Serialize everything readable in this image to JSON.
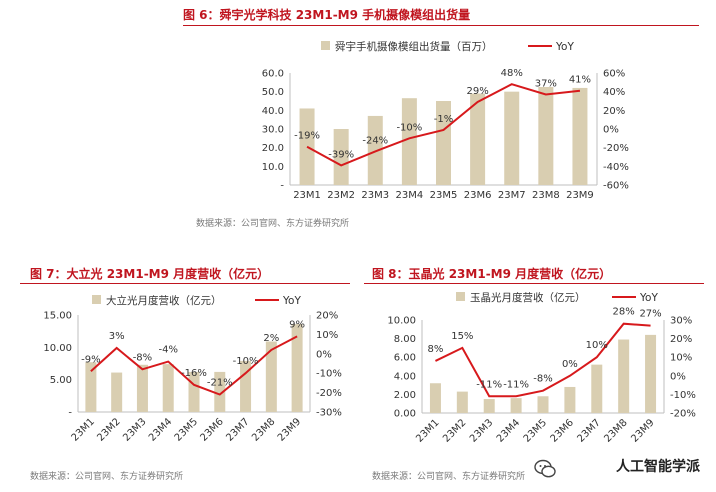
{
  "chart_data": [
    {
      "type": "bar+line",
      "title": "图 6：舜宇光学科技 23M1-M9 手机摄像模组出货量",
      "legend": [
        "舜宇手机摄像模组出货量（百万）",
        "YoY"
      ],
      "categories": [
        "23M1",
        "23M2",
        "23M3",
        "23M4",
        "23M5",
        "23M6",
        "23M7",
        "23M8",
        "23M9"
      ],
      "series": [
        {
          "name": "舜宇手机摄像模组出货量（百万）",
          "kind": "bar",
          "values": [
            41,
            30,
            37,
            46.5,
            45,
            49,
            50,
            52.5,
            52
          ]
        },
        {
          "name": "YoY",
          "kind": "line",
          "values": [
            -19,
            -39,
            -24,
            -10,
            -1,
            29,
            48,
            37,
            41
          ],
          "labels": [
            "-19%",
            "-39%",
            "-24%",
            "-10%",
            "-1%",
            "29%",
            "48%",
            "37%",
            "41%"
          ]
        }
      ],
      "left_ticks": [
        "60.0",
        "50.0",
        "40.0",
        "30.0",
        "20.0",
        "10.0",
        "-"
      ],
      "right_ticks": [
        "60%",
        "40%",
        "20%",
        "0%",
        "-20%",
        "-40%",
        "-60%"
      ],
      "ylim_left": [
        0,
        60
      ],
      "ylim_right": [
        -60,
        60
      ],
      "source": "数据来源：公司官网、东方证券研究所"
    },
    {
      "type": "bar+line",
      "title": "图 7：大立光 23M1-M9 月度营收（亿元）",
      "legend": [
        "大立光月度营收（亿元）",
        "YoY"
      ],
      "categories": [
        "23M1",
        "23M2",
        "23M3",
        "23M4",
        "23M5",
        "23M6",
        "23M7",
        "23M8",
        "23M9"
      ],
      "series": [
        {
          "name": "大立光月度营收（亿元）",
          "kind": "bar",
          "values": [
            7.7,
            6.1,
            7.3,
            7.4,
            6.2,
            6.2,
            7.9,
            10.9,
            13.6
          ]
        },
        {
          "name": "YoY",
          "kind": "line",
          "values": [
            -9,
            3,
            -8,
            -4,
            -16,
            -21,
            -10,
            2,
            9
          ],
          "labels": [
            "-9%",
            "3%",
            "-8%",
            "-4%",
            "-16%",
            "-21%",
            "-10%",
            "2%",
            "9%"
          ]
        }
      ],
      "left_ticks": [
        "15.00",
        "10.00",
        "5.00",
        "-"
      ],
      "right_ticks": [
        "20%",
        "10%",
        "0%",
        "-10%",
        "-20%",
        "-30%"
      ],
      "ylim_left": [
        0,
        15
      ],
      "ylim_right": [
        -30,
        20
      ],
      "source": "数据来源：公司官网、东方证券研究所"
    },
    {
      "type": "bar+line",
      "title": "图 8：玉晶光 23M1-M9 月度营收（亿元）",
      "legend": [
        "玉晶光月度营收（亿元）",
        "YoY"
      ],
      "categories": [
        "23M1",
        "23M2",
        "23M3",
        "23M4",
        "23M5",
        "23M6",
        "23M7",
        "23M8",
        "23M9"
      ],
      "series": [
        {
          "name": "玉晶光月度营收（亿元）",
          "kind": "bar",
          "values": [
            3.2,
            2.3,
            1.5,
            1.6,
            1.8,
            2.8,
            5.2,
            7.9,
            8.4
          ]
        },
        {
          "name": "YoY",
          "kind": "line",
          "values": [
            8,
            15,
            -11,
            -11,
            -8,
            0,
            10,
            28,
            27
          ],
          "labels": [
            "8%",
            "15%",
            "-11%",
            "-11%",
            "-8%",
            "0%",
            "10%",
            "28%",
            "27%"
          ]
        }
      ],
      "left_ticks": [
        "10.00",
        "8.00",
        "6.00",
        "4.00",
        "2.00",
        "0.00"
      ],
      "right_ticks": [
        "30%",
        "20%",
        "10%",
        "0%",
        "-10%",
        "-20%"
      ],
      "ylim_left": [
        0,
        10
      ],
      "ylim_right": [
        -20,
        30
      ],
      "source": "数据来源：公司官网、东方证券研究所"
    }
  ],
  "watermark": "人工智能学派",
  "colors": {
    "bar": "#d9ceb1",
    "line": "#d7191c",
    "title": "#c0151f",
    "axis": "#bfbfbf"
  }
}
